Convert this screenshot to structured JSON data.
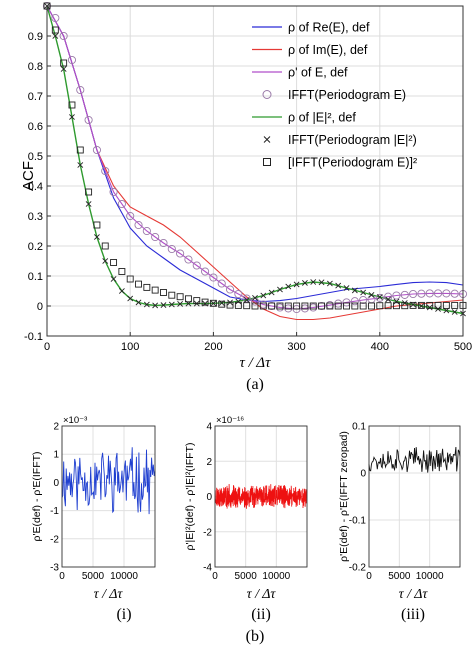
{
  "panel_labels": {
    "a": "(a)",
    "b": "(b)",
    "i": "(i)",
    "ii": "(ii)",
    "iii": "(iii)"
  },
  "colors": {
    "re": "#2b2bd6",
    "im": "#e53935",
    "rhoPrime": "#b14fc9",
    "abs2": "#2e9a2e",
    "circles": "#9a7aa8",
    "marks": "#222222",
    "sub_i": "#1f3fd0",
    "sub_ii": "#ee1111",
    "sub_iii": "#111111"
  },
  "chart_data": [
    {
      "id": "main",
      "type": "line",
      "xlabel": "τ / Δτ",
      "ylabel": "ACF",
      "xlim": [
        0,
        500
      ],
      "ylim": [
        -0.1,
        1.0
      ],
      "xticks": [
        0,
        100,
        200,
        300,
        400,
        500
      ],
      "yticks": [
        -0.1,
        0,
        0.1,
        0.2,
        0.3,
        0.4,
        0.5,
        0.6,
        0.7,
        0.8,
        0.9
      ],
      "grid": true,
      "legend_position": "top-right",
      "series": [
        {
          "key": "re",
          "name": "ρ of Re(E), def",
          "style": "line",
          "x": [
            0,
            20,
            40,
            60,
            80,
            100,
            120,
            140,
            160,
            180,
            200,
            220,
            240,
            260,
            280,
            300,
            320,
            340,
            360,
            380,
            400,
            420,
            440,
            460,
            480,
            500
          ],
          "y": [
            1.0,
            0.9,
            0.72,
            0.52,
            0.36,
            0.26,
            0.2,
            0.16,
            0.12,
            0.09,
            0.06,
            0.03,
            0.02,
            0.015,
            0.018,
            0.025,
            0.035,
            0.045,
            0.055,
            0.06,
            0.065,
            0.072,
            0.078,
            0.08,
            0.078,
            0.07
          ]
        },
        {
          "key": "im",
          "name": "ρ of Im(E), def",
          "style": "line",
          "x": [
            0,
            20,
            40,
            60,
            80,
            100,
            120,
            140,
            160,
            180,
            200,
            220,
            240,
            260,
            280,
            300,
            320,
            340,
            360,
            380,
            400,
            420,
            440,
            460,
            480,
            500
          ],
          "y": [
            1.0,
            0.9,
            0.72,
            0.52,
            0.4,
            0.33,
            0.3,
            0.27,
            0.23,
            0.18,
            0.13,
            0.08,
            0.03,
            -0.01,
            -0.035,
            -0.045,
            -0.045,
            -0.04,
            -0.03,
            -0.02,
            -0.01,
            0.0,
            0.005,
            0.01,
            0.015,
            0.02
          ]
        },
        {
          "key": "rhoPrime",
          "name": "ρ' of E, def",
          "style": "line",
          "x": [
            0,
            20,
            40,
            60,
            80,
            100,
            120,
            140,
            160,
            180,
            200,
            220,
            240,
            260,
            280,
            300,
            320,
            340,
            360,
            380,
            400,
            420,
            440,
            460,
            480,
            500
          ],
          "y": [
            1.0,
            0.9,
            0.72,
            0.52,
            0.38,
            0.3,
            0.25,
            0.21,
            0.175,
            0.135,
            0.095,
            0.055,
            0.025,
            0.005,
            -0.005,
            -0.01,
            -0.005,
            0.003,
            0.012,
            0.02,
            0.027,
            0.035,
            0.04,
            0.042,
            0.042,
            0.04
          ]
        },
        {
          "key": "circles",
          "name": "IFFT(Periodogram E)",
          "style": "circle",
          "x": [
            0,
            10,
            20,
            30,
            40,
            50,
            60,
            70,
            80,
            90,
            100,
            110,
            120,
            130,
            140,
            150,
            160,
            170,
            180,
            190,
            200,
            210,
            220,
            230,
            240,
            250,
            260,
            270,
            280,
            290,
            300,
            310,
            320,
            330,
            340,
            350,
            360,
            370,
            380,
            390,
            400,
            410,
            420,
            430,
            440,
            450,
            460,
            470,
            480,
            490,
            500
          ],
          "y": [
            1.0,
            0.96,
            0.9,
            0.82,
            0.72,
            0.62,
            0.52,
            0.45,
            0.38,
            0.34,
            0.3,
            0.27,
            0.25,
            0.23,
            0.21,
            0.19,
            0.175,
            0.155,
            0.135,
            0.115,
            0.095,
            0.075,
            0.055,
            0.04,
            0.025,
            0.015,
            0.005,
            0.0,
            -0.005,
            -0.008,
            -0.01,
            -0.008,
            -0.005,
            0.0,
            0.003,
            0.008,
            0.012,
            0.016,
            0.02,
            0.023,
            0.027,
            0.031,
            0.035,
            0.037,
            0.04,
            0.041,
            0.042,
            0.042,
            0.042,
            0.041,
            0.04
          ]
        },
        {
          "key": "abs2",
          "name": "ρ of |E|², def",
          "style": "line",
          "x": [
            0,
            10,
            20,
            30,
            40,
            50,
            60,
            70,
            80,
            90,
            100,
            110,
            120,
            130,
            140,
            150,
            160,
            170,
            180,
            190,
            200,
            220,
            240,
            260,
            280,
            300,
            320,
            340,
            360,
            380,
            400,
            420,
            440,
            460,
            480,
            500
          ],
          "y": [
            1.0,
            0.9,
            0.79,
            0.63,
            0.47,
            0.34,
            0.23,
            0.15,
            0.09,
            0.05,
            0.025,
            0.012,
            0.005,
            0.002,
            0.003,
            0.005,
            0.007,
            0.008,
            0.008,
            0.008,
            0.009,
            0.012,
            0.02,
            0.035,
            0.055,
            0.072,
            0.08,
            0.075,
            0.06,
            0.045,
            0.03,
            0.015,
            0.005,
            -0.005,
            -0.015,
            -0.025
          ]
        },
        {
          "key": "crosses",
          "name": "IFFT(Periodogram |E|²)",
          "style": "cross",
          "x": [
            0,
            10,
            20,
            30,
            40,
            50,
            60,
            70,
            80,
            90,
            100,
            110,
            120,
            130,
            140,
            150,
            160,
            170,
            180,
            190,
            200,
            210,
            220,
            230,
            240,
            250,
            260,
            270,
            280,
            290,
            300,
            310,
            320,
            330,
            340,
            350,
            360,
            370,
            380,
            390,
            400,
            410,
            420,
            430,
            440,
            450,
            460,
            470,
            480,
            490,
            500
          ],
          "y": [
            1.0,
            0.9,
            0.79,
            0.63,
            0.47,
            0.34,
            0.23,
            0.15,
            0.09,
            0.05,
            0.025,
            0.012,
            0.005,
            0.002,
            0.003,
            0.005,
            0.007,
            0.008,
            0.008,
            0.008,
            0.009,
            0.01,
            0.012,
            0.015,
            0.02,
            0.027,
            0.035,
            0.045,
            0.055,
            0.065,
            0.072,
            0.077,
            0.08,
            0.079,
            0.075,
            0.068,
            0.06,
            0.052,
            0.045,
            0.037,
            0.03,
            0.022,
            0.015,
            0.01,
            0.005,
            0.0,
            -0.005,
            -0.01,
            -0.015,
            -0.02,
            -0.025
          ]
        },
        {
          "key": "squares",
          "name": "[IFFT(Periodogram E)]²",
          "style": "square",
          "x": [
            0,
            10,
            20,
            30,
            40,
            50,
            60,
            70,
            80,
            90,
            100,
            110,
            120,
            130,
            140,
            150,
            160,
            170,
            180,
            190,
            200,
            210,
            220,
            230,
            240,
            250,
            260,
            270,
            280,
            290,
            300,
            310,
            320,
            330,
            340,
            350,
            360,
            370,
            380,
            390,
            400,
            410,
            420,
            430,
            440,
            450,
            460,
            470,
            480,
            490,
            500
          ],
          "y": [
            1.0,
            0.92,
            0.81,
            0.67,
            0.52,
            0.38,
            0.27,
            0.2,
            0.145,
            0.115,
            0.09,
            0.073,
            0.062,
            0.053,
            0.045,
            0.036,
            0.031,
            0.024,
            0.018,
            0.013,
            0.009,
            0.006,
            0.003,
            0.002,
            0.001,
            0.0,
            0.0,
            0.0,
            0.0,
            0.0,
            0.0,
            0.0,
            0.0,
            0.0,
            0.0,
            0.0,
            0.0,
            0.0,
            0.0,
            0.0,
            0.001,
            0.001,
            0.001,
            0.001,
            0.002,
            0.002,
            0.002,
            0.002,
            0.002,
            0.002,
            0.002
          ]
        }
      ]
    },
    {
      "id": "i",
      "type": "line",
      "xlabel": "τ / Δτ",
      "ylabel": "ρ'E(def) - ρ'E(IFFT)",
      "scale_label": "×10⁻³",
      "xlim": [
        0,
        15000
      ],
      "ylim": [
        -3,
        2
      ],
      "xticks": [
        0,
        5000,
        10000
      ],
      "yticks": [
        -3,
        -2,
        -1,
        0,
        1,
        2
      ],
      "ytick_labels": [
        "-3",
        "-2",
        "-1",
        "0",
        "1",
        "2"
      ],
      "noise": {
        "seed": 11,
        "n": 110,
        "amp": 0.95,
        "offset": 0.1
      }
    },
    {
      "id": "ii",
      "type": "line",
      "xlabel": "τ / Δτ",
      "ylabel": "ρ'|E|²(def) - ρ'|E|²(IFFT)",
      "scale_label": "×10⁻¹⁶",
      "xlim": [
        0,
        15000
      ],
      "ylim": [
        -4,
        4
      ],
      "xticks": [
        0,
        5000,
        10000
      ],
      "yticks": [
        -4,
        -2,
        0,
        2,
        4
      ],
      "ytick_labels": [
        "-4",
        "-2",
        "0",
        "2",
        "4"
      ],
      "noise": {
        "seed": 23,
        "n": 600,
        "amp": 0.55,
        "offset": 0.0
      }
    },
    {
      "id": "iii",
      "type": "line",
      "xlabel": "τ / Δτ",
      "ylabel": "ρ'E(def) - ρ'E(IFFT zeropad)",
      "xlim": [
        0,
        15000
      ],
      "ylim": [
        -0.2,
        0.1
      ],
      "xticks": [
        0,
        5000,
        10000
      ],
      "yticks": [
        -0.2,
        -0.1,
        0,
        0.1
      ],
      "ytick_labels": [
        "-0.2",
        "-0.1",
        "0",
        "0.1"
      ],
      "noise": {
        "seed": 37,
        "n": 110,
        "amp": 0.022,
        "offset": 0.028
      }
    }
  ]
}
